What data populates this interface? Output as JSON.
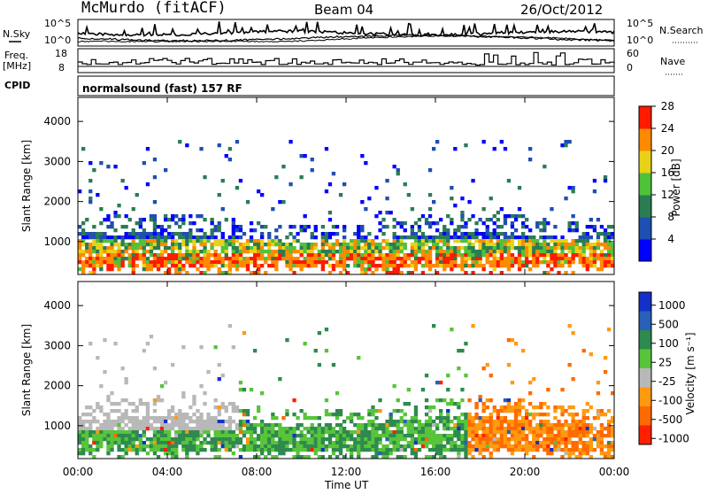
{
  "header": {
    "station": "McMurdo (fitACF)",
    "beam": "Beam 04",
    "date": "26/Oct/2012"
  },
  "noise_panel": {
    "left_label": "N.Sky",
    "right_label": "N.Search",
    "left_ticks": [
      "10^5",
      "10^0"
    ],
    "right_ticks": [
      "10^5",
      "10^0"
    ]
  },
  "freq_panel": {
    "left_label_1": "Freq.",
    "left_label_2": "[MHz]",
    "right_label": "Nave",
    "left_ticks": [
      "18",
      "8"
    ],
    "right_ticks": [
      "60",
      "0"
    ]
  },
  "cpid": {
    "label": "CPID",
    "text": "normalsound (fast) 157 RF"
  },
  "chart_data": [
    {
      "type": "heatmap",
      "name": "power",
      "ylabel": "Slant Range [km]",
      "ylim": [
        180,
        4600
      ],
      "yticks": [
        "1000",
        "2000",
        "3000",
        "4000"
      ],
      "colorbar_label": "Power [dB]",
      "colorbar_ticks": [
        "4",
        "8",
        "12",
        "16",
        "20",
        "24",
        "28"
      ],
      "colors": [
        "#0000ff",
        "#1f4fb0",
        "#2a7d52",
        "#4fc23a",
        "#e8d218",
        "#ff8a00",
        "#ff1a00"
      ]
    },
    {
      "type": "heatmap",
      "name": "velocity",
      "ylabel": "Slant Range [km]",
      "ylim": [
        180,
        4600
      ],
      "yticks": [
        "1000",
        "2000",
        "3000",
        "4000"
      ],
      "colorbar_label": "Velocity [m s⁻¹]",
      "colorbar_ticks": [
        "1000",
        "500",
        "100",
        "25",
        "-25",
        "-100",
        "-500",
        "-1000"
      ],
      "colors": [
        "#1530c8",
        "#2860b8",
        "#2e8a4e",
        "#58c43a",
        "#b8b8b8",
        "#ff9a10",
        "#ff6a00",
        "#ff2000"
      ]
    }
  ],
  "time_axis": {
    "label": "Time UT",
    "ticks": [
      "00:00",
      "04:00",
      "08:00",
      "12:00",
      "16:00",
      "20:00",
      "00:00"
    ]
  }
}
